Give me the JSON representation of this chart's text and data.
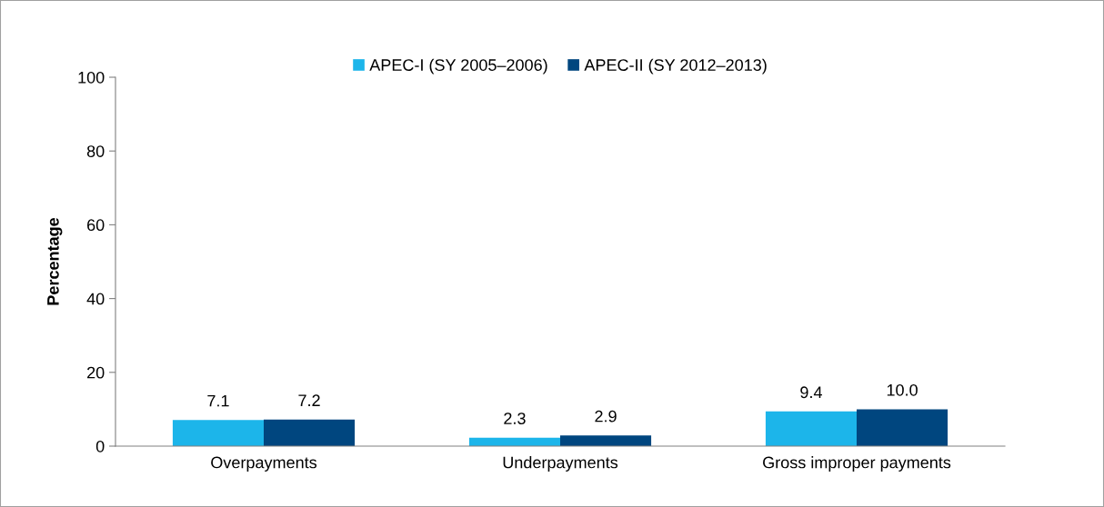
{
  "chart_data": {
    "type": "bar",
    "ylabel": "Percentage",
    "categories": [
      "Overpayments",
      "Underpayments",
      "Gross improper payments"
    ],
    "series": [
      {
        "name": "APEC-I (SY 2005–2006)",
        "color": "#1cb5ea",
        "values": [
          7.1,
          2.3,
          9.4
        ],
        "value_labels": [
          "7.1",
          "2.3",
          "9.4"
        ]
      },
      {
        "name": "APEC-II (SY 2012–2013)",
        "color": "#00467f",
        "values": [
          7.2,
          2.9,
          10.0
        ],
        "value_labels": [
          "7.2",
          "2.9",
          "10.0"
        ]
      }
    ],
    "ylim": [
      0,
      100
    ],
    "yticks": [
      0,
      20,
      40,
      60,
      80,
      100
    ],
    "grid": false,
    "legend": "top"
  }
}
